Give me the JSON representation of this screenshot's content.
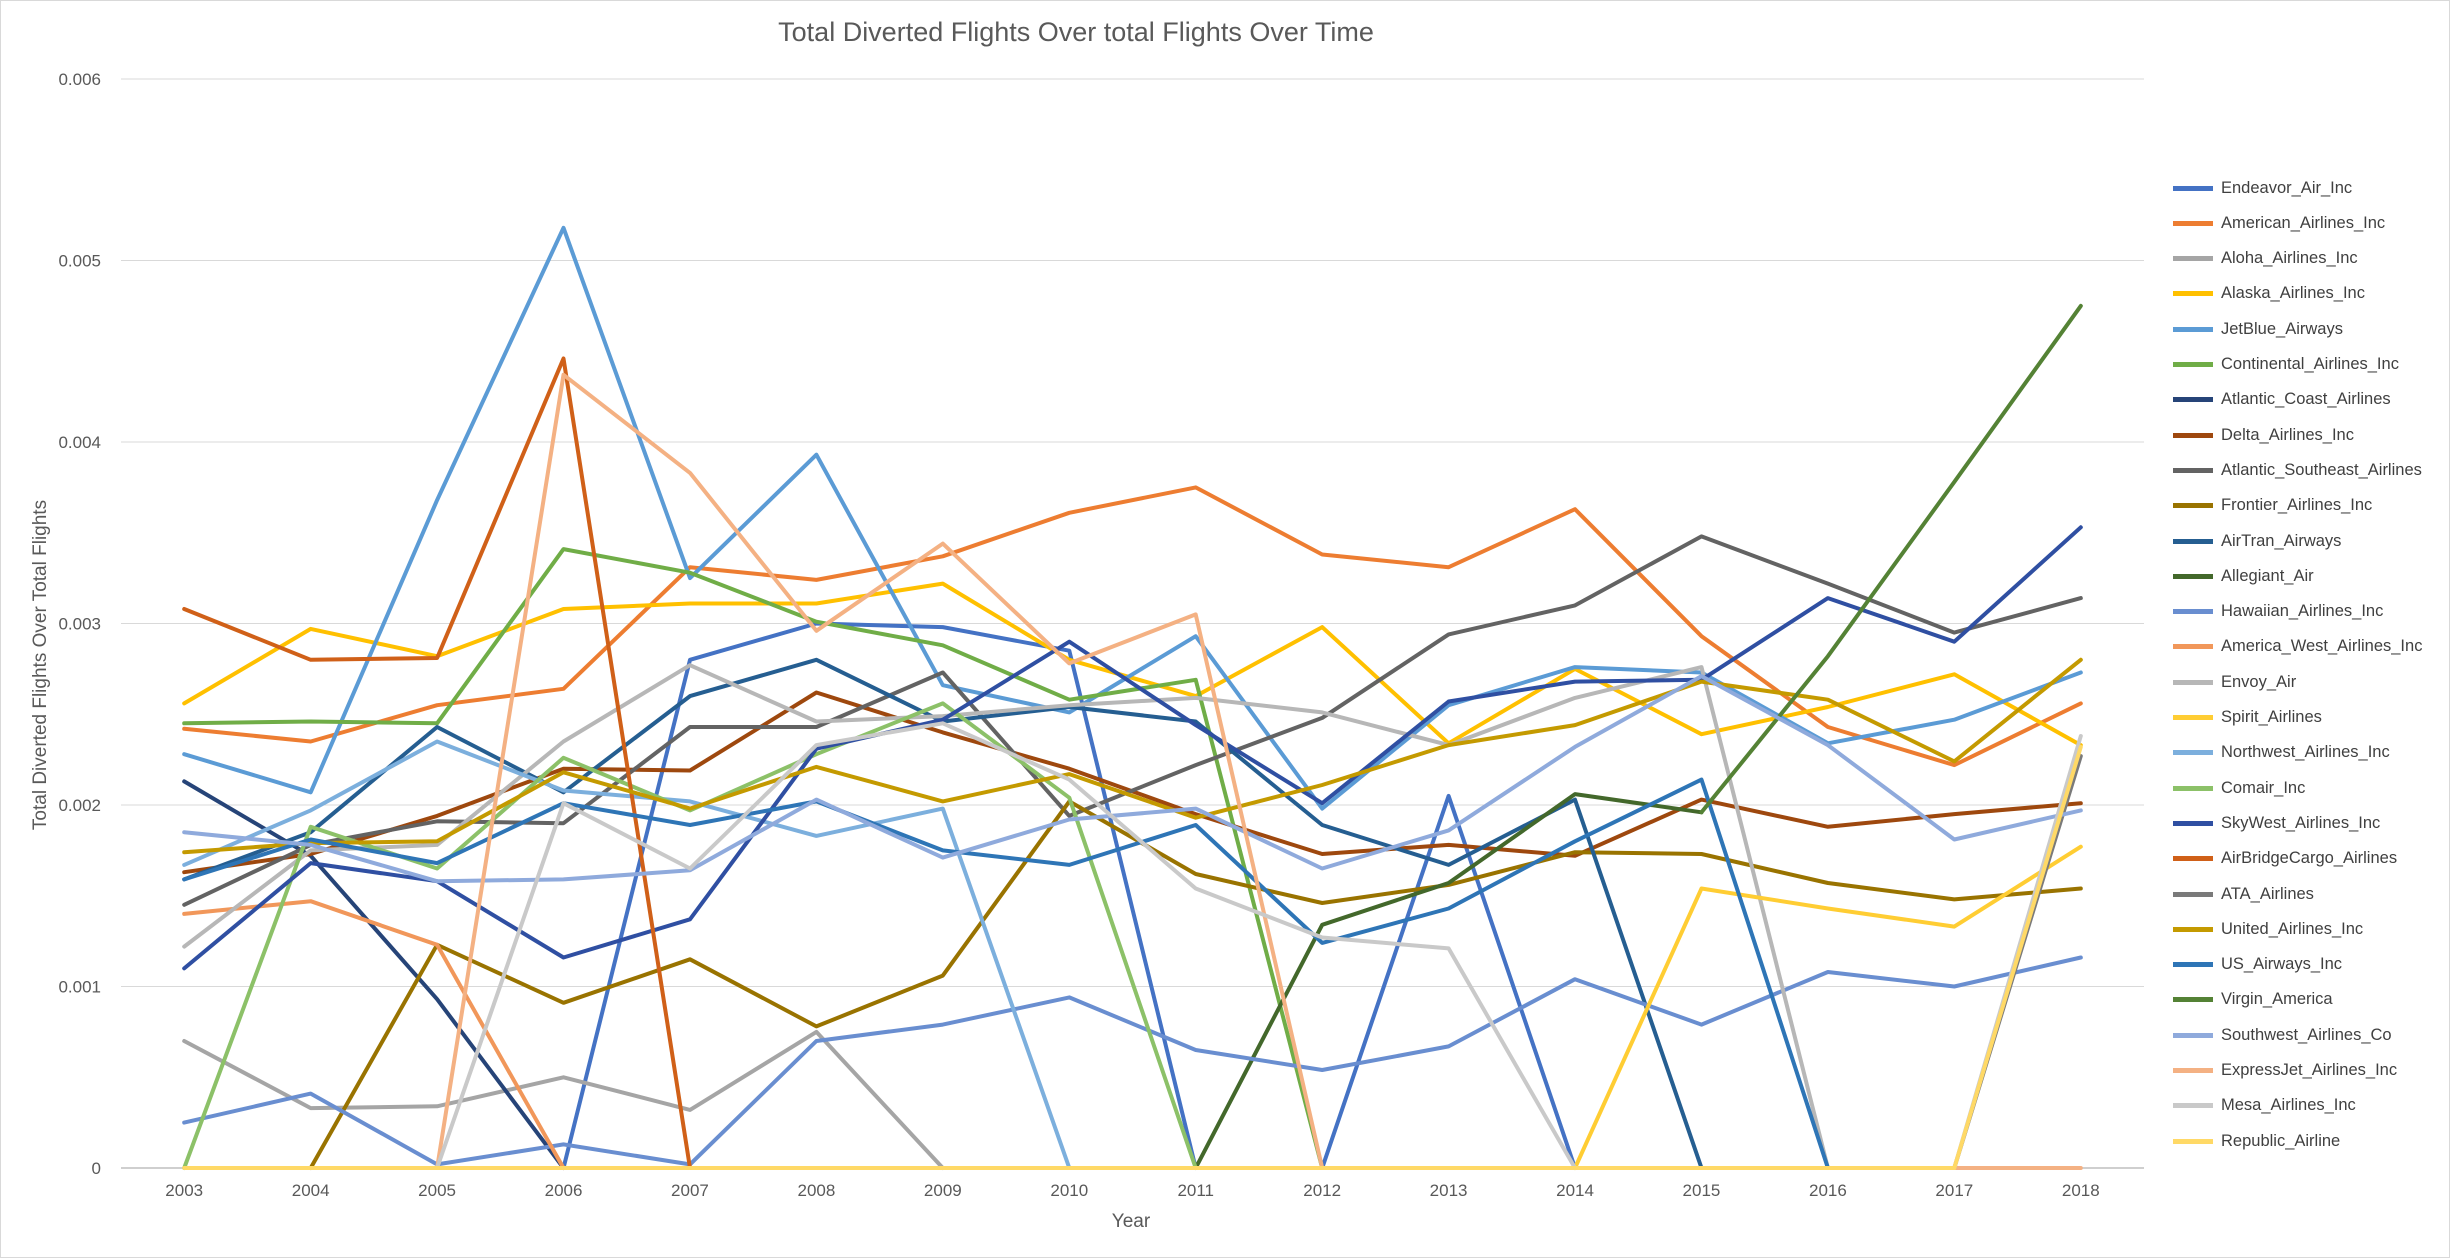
{
  "chart_data": {
    "type": "line",
    "title": "Total Diverted Flights Over total Flights Over Time",
    "xlabel": "Year",
    "ylabel": "Total Diverted Flights Over Total Flights",
    "ylim": [
      0,
      0.006
    ],
    "y_ticks": [
      "0",
      "0.001",
      "0.002",
      "0.003",
      "0.004",
      "0.005",
      "0.006"
    ],
    "grid": true,
    "legend_position": "right",
    "categories": [
      "2003",
      "2004",
      "2005",
      "2006",
      "2007",
      "2008",
      "2009",
      "2010",
      "2011",
      "2012",
      "2013",
      "2014",
      "2015",
      "2016",
      "2017",
      "2018"
    ],
    "series": [
      {
        "name": "Endeavor_Air_Inc",
        "color": "#4472C4",
        "values": [
          null,
          null,
          null,
          0,
          0.0028,
          0.003,
          0.00298,
          0.00285,
          0,
          0,
          0.00205,
          0,
          null,
          null,
          null,
          null
        ]
      },
      {
        "name": "American_Airlines_Inc",
        "color": "#ED7D31",
        "values": [
          0.00242,
          0.00235,
          0.00255,
          0.00264,
          0.00331,
          0.00324,
          0.00337,
          0.00361,
          0.00375,
          0.00338,
          0.00331,
          0.00363,
          0.00293,
          0.00243,
          0.00222,
          0.00256
        ]
      },
      {
        "name": "Aloha_Airlines_Inc",
        "color": "#A5A5A5",
        "values": [
          0.0007,
          0.00033,
          0.00034,
          0.0005,
          0.00032,
          0.00075,
          0,
          null,
          null,
          null,
          null,
          null,
          null,
          null,
          null,
          null
        ]
      },
      {
        "name": "Alaska_Airlines_Inc",
        "color": "#FFC000",
        "values": [
          0.00256,
          0.00297,
          0.00282,
          0.00308,
          0.00311,
          0.00311,
          0.00322,
          0.0028,
          0.0026,
          0.00298,
          0.00234,
          0.00275,
          0.00239,
          0.00254,
          0.00272,
          0.00233
        ]
      },
      {
        "name": "JetBlue_Airways",
        "color": "#5B9BD5",
        "values": [
          0.00228,
          0.00207,
          0.00368,
          0.00518,
          0.00325,
          0.00393,
          0.00266,
          0.00251,
          0.00293,
          0.00198,
          0.00255,
          0.00276,
          0.00273,
          0.00234,
          0.00247,
          0.00273
        ]
      },
      {
        "name": "Continental_Airlines_Inc",
        "color": "#70AD47",
        "values": [
          0.00245,
          0.00246,
          0.00245,
          0.00341,
          0.00328,
          0.00301,
          0.00288,
          0.00258,
          0.00269,
          0,
          null,
          null,
          null,
          null,
          null,
          null
        ]
      },
      {
        "name": "Atlantic_Coast_Airlines",
        "color": "#264478",
        "values": [
          0.00213,
          0.00172,
          0.00093,
          0,
          null,
          null,
          null,
          null,
          null,
          null,
          null,
          null,
          null,
          null,
          null,
          null
        ]
      },
      {
        "name": "Delta_Airlines_Inc",
        "color": "#9E480E",
        "values": [
          0.00163,
          0.00173,
          0.00194,
          0.0022,
          0.00219,
          0.00262,
          0.0024,
          0.0022,
          0.00195,
          0.00173,
          0.00178,
          0.00172,
          0.00203,
          0.00188,
          0.00195,
          0.00201
        ]
      },
      {
        "name": "Atlantic_Southeast_Airlines",
        "color": "#636363",
        "values": [
          0.00145,
          0.00178,
          0.00191,
          0.0019,
          0.00243,
          0.00243,
          0.00273,
          0.00194,
          0.00222,
          0.00248,
          0.00294,
          0.0031,
          0.00348,
          0.00322,
          0.00295,
          0.00314
        ]
      },
      {
        "name": "Frontier_Airlines_Inc",
        "color": "#997300",
        "values": [
          null,
          0,
          0.00123,
          0.00091,
          0.00115,
          0.00078,
          0.00106,
          0.00202,
          0.00162,
          0.00146,
          0.00156,
          0.00174,
          0.00173,
          0.00157,
          0.00148,
          0.00154
        ]
      },
      {
        "name": "AirTran_Airways",
        "color": "#255E91",
        "values": [
          0.00159,
          0.00185,
          0.00243,
          0.00207,
          0.0026,
          0.0028,
          0.00246,
          0.00254,
          0.00246,
          0.00189,
          0.00167,
          0.00203,
          0,
          null,
          null,
          null
        ]
      },
      {
        "name": "Allegiant_Air",
        "color": "#43682B",
        "values": [
          null,
          null,
          null,
          null,
          null,
          null,
          null,
          null,
          0,
          0.00134,
          0.00157,
          0.00206,
          0.00196,
          null,
          null,
          0.00269
        ]
      },
      {
        "name": "Hawaiian_Airlines_Inc",
        "color": "#698ED0",
        "values": [
          0.00025,
          0.00041,
          2e-05,
          0.00013,
          2e-05,
          0.0007,
          0.00079,
          0.00094,
          0.00065,
          0.00054,
          0.00067,
          0.00104,
          0.00079,
          0.00108,
          0.001,
          0.00116
        ]
      },
      {
        "name": "America_West_Airlines_Inc",
        "color": "#F1975A",
        "values": [
          0.0014,
          0.00147,
          0.00123,
          0,
          null,
          null,
          null,
          null,
          null,
          null,
          null,
          null,
          null,
          null,
          null,
          null
        ]
      },
      {
        "name": "Envoy_Air",
        "color": "#B7B7B7",
        "values": [
          0.00122,
          0.00175,
          0.00178,
          0.00235,
          0.00277,
          0.00246,
          0.00249,
          0.00255,
          0.00259,
          0.00251,
          0.00233,
          0.00259,
          0.00276,
          0,
          null,
          null
        ]
      },
      {
        "name": "Spirit_Airlines",
        "color": "#FFCD33",
        "values": [
          null,
          null,
          null,
          null,
          null,
          null,
          null,
          null,
          null,
          null,
          null,
          0,
          0.00154,
          0.00143,
          0.00133,
          0.00177
        ]
      },
      {
        "name": "Northwest_Airlines_Inc",
        "color": "#7CAFDD",
        "values": [
          0.00167,
          0.00197,
          0.00235,
          0.00208,
          0.00202,
          0.00183,
          0.00198,
          0,
          null,
          null,
          null,
          null,
          null,
          null,
          null,
          null
        ]
      },
      {
        "name": "Comair_Inc",
        "color": "#8CC168",
        "values": [
          0,
          0.00188,
          0.00165,
          0.00226,
          0.00197,
          0.00228,
          0.00256,
          0.00204,
          0,
          null,
          null,
          null,
          null,
          null,
          null,
          null
        ]
      },
      {
        "name": "SkyWest_Airlines_Inc",
        "color": "#2F4FA2",
        "values": [
          0.0011,
          0.00168,
          0.00158,
          0.00116,
          0.00137,
          0.00231,
          0.00247,
          0.0029,
          0.00244,
          0.00201,
          0.00257,
          0.00268,
          0.00269,
          0.00314,
          0.0029,
          0.00353
        ]
      },
      {
        "name": "AirBridgeCargo_Airlines",
        "color": "#D06018",
        "values": [
          0.00308,
          0.0028,
          0.00281,
          0.00446,
          0,
          null,
          null,
          null,
          null,
          null,
          null,
          null,
          null,
          null,
          null,
          null
        ]
      },
      {
        "name": "ATA_Airlines",
        "color": "#7A7A7A",
        "values": [
          null,
          null,
          null,
          null,
          null,
          null,
          null,
          null,
          null,
          null,
          null,
          null,
          null,
          null,
          0,
          0.00227
        ]
      },
      {
        "name": "United_Airlines_Inc",
        "color": "#C49A00",
        "values": [
          0.00174,
          0.00179,
          0.0018,
          0.00218,
          0.00198,
          0.00221,
          0.00202,
          0.00217,
          0.00193,
          0.00211,
          0.00233,
          0.00244,
          0.00268,
          0.00258,
          0.00224,
          0.0028
        ]
      },
      {
        "name": "US_Airways_Inc",
        "color": "#2E75B6",
        "values": [
          0.00159,
          0.00181,
          0.00168,
          0.00201,
          0.00189,
          0.00202,
          0.00175,
          0.00167,
          0.00189,
          0.00124,
          0.00143,
          0.0018,
          0.00214,
          0,
          null,
          null
        ]
      },
      {
        "name": "Virgin_America",
        "color": "#548235",
        "values": [
          null,
          null,
          null,
          null,
          null,
          null,
          null,
          null,
          null,
          null,
          null,
          null,
          0.00196,
          0.00282,
          0.00378,
          0.00475
        ]
      },
      {
        "name": "Southwest_Airlines_Co",
        "color": "#8FAADC",
        "values": [
          0.00185,
          0.00178,
          0.00158,
          0.00159,
          0.00164,
          0.00203,
          0.00171,
          0.00192,
          0.00198,
          0.00165,
          0.00186,
          0.00232,
          0.00271,
          0.00233,
          0.00181,
          0.00197
        ]
      },
      {
        "name": "ExpressJet_Airlines_Inc",
        "color": "#F4B183",
        "values": [
          null,
          null,
          0,
          0.00437,
          0.00383,
          0.00296,
          0.00344,
          0.00278,
          0.00305,
          0,
          0,
          0,
          0,
          0,
          0,
          0
        ]
      },
      {
        "name": "Mesa_Airlines_Inc",
        "color": "#C9C9C9",
        "values": [
          null,
          null,
          0,
          0.00201,
          0.00165,
          0.00233,
          0.00245,
          0.00214,
          0.00154,
          0.00127,
          0.00121,
          0,
          null,
          null,
          0,
          0.00238
        ]
      },
      {
        "name": "Republic_Airline",
        "color": "#FFD966",
        "values": [
          0,
          0,
          0,
          0,
          0,
          0,
          0,
          0,
          0,
          0,
          0,
          0,
          0,
          0,
          0,
          0.00232
        ]
      }
    ]
  }
}
